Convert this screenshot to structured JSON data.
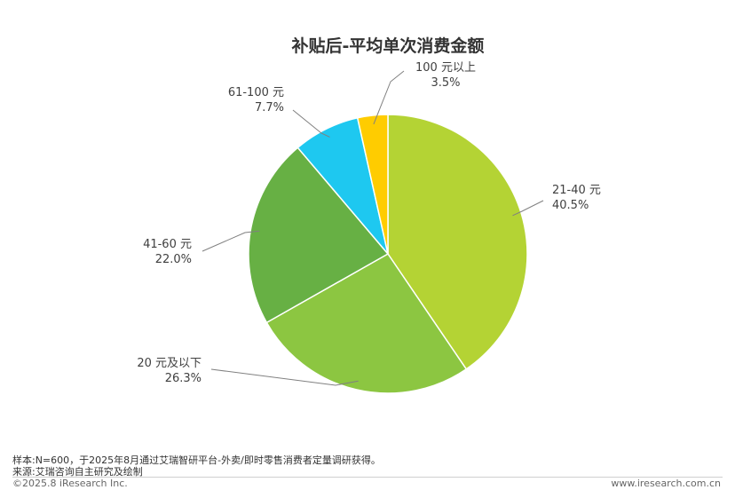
{
  "chart_data": {
    "type": "pie",
    "title": "补贴后-平均单次消费金额",
    "slices": [
      {
        "label": "21-40 元",
        "value": 40.5,
        "display": "40.5%",
        "color": "#b4d334"
      },
      {
        "label": "20 元及以下",
        "value": 26.3,
        "display": "26.3%",
        "color": "#8cc641"
      },
      {
        "label": "41-60 元",
        "value": 22.0,
        "display": "22.0%",
        "color": "#67b044"
      },
      {
        "label": "61-100 元",
        "value": 7.7,
        "display": "7.7%",
        "color": "#1ec8f0"
      },
      {
        "label": "100 元以上",
        "value": 3.5,
        "display": "3.5%",
        "color": "#ffcc00"
      }
    ],
    "start_angle": "12 o'clock",
    "direction": "clockwise",
    "leader_line_color": "#808080"
  },
  "footer": {
    "note": "样本:N=600，于2025年8月通过艾瑞智研平台-外卖/即时零售消费者定量调研获得。",
    "source": "来源:艾瑞咨询自主研究及绘制",
    "copyright": "©2025.8 iResearch Inc.",
    "website": "www.iresearch.com.cn"
  }
}
